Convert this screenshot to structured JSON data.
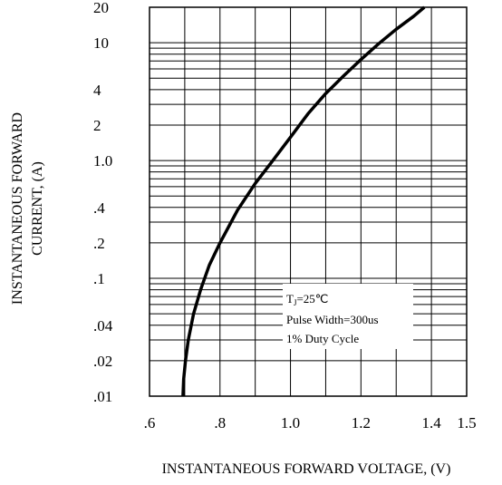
{
  "chart_data": {
    "type": "line",
    "title": "",
    "xlabel": "INSTANTANEOUS FORWARD VOLTAGE, (V)",
    "ylabel": [
      "INSTANTANEOUS FORWARD",
      "CURRENT, (A)"
    ],
    "xscale": "linear",
    "yscale": "log",
    "xlim": [
      0.6,
      1.5
    ],
    "ylim": [
      0.01,
      20
    ],
    "x_ticks": [
      {
        "value": 0.6,
        "label": ".6"
      },
      {
        "value": 0.8,
        "label": ".8"
      },
      {
        "value": 1.0,
        "label": "1.0"
      },
      {
        "value": 1.2,
        "label": "1.2"
      },
      {
        "value": 1.4,
        "label": "1.4"
      },
      {
        "value": 1.5,
        "label": "1.5"
      }
    ],
    "y_ticks": [
      {
        "value": 20,
        "label": "20"
      },
      {
        "value": 10,
        "label": "10"
      },
      {
        "value": 4,
        "label": "4"
      },
      {
        "value": 2,
        "label": "2"
      },
      {
        "value": 1,
        "label": "1.0"
      },
      {
        "value": 0.4,
        "label": ".4"
      },
      {
        "value": 0.2,
        "label": ".2"
      },
      {
        "value": 0.1,
        "label": ".1"
      },
      {
        "value": 0.04,
        "label": ".04"
      },
      {
        "value": 0.02,
        "label": ".02"
      },
      {
        "value": 0.01,
        "label": ".01"
      }
    ],
    "grid": true,
    "annotation": {
      "lines": [
        "T_J=25℃",
        "Pulse Width=300us",
        "1% Duty Cycle"
      ],
      "tj_main": "T",
      "tj_sub": "J",
      "tj_rest": "=25℃"
    },
    "series": [
      {
        "x": [
          0.695,
          0.697,
          0.702,
          0.71,
          0.725,
          0.745,
          0.77,
          0.8,
          0.85,
          0.9,
          0.95,
          1.0,
          1.05,
          1.1,
          1.15,
          1.2,
          1.25,
          1.3,
          1.35,
          1.38
        ],
        "y": [
          0.01,
          0.014,
          0.02,
          0.03,
          0.05,
          0.08,
          0.13,
          0.2,
          0.38,
          0.64,
          1.0,
          1.58,
          2.5,
          3.7,
          5.2,
          7.2,
          9.8,
          13.0,
          16.8,
          20.0
        ]
      }
    ]
  }
}
